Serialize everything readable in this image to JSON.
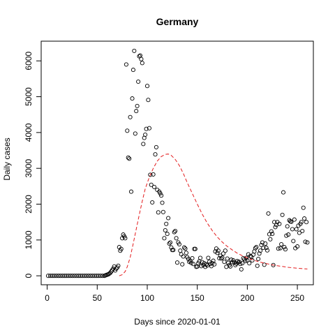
{
  "chart_data": {
    "type": "scatter",
    "title": "Germany",
    "xlabel": "Days since 2020-01-01",
    "ylabel": "Daily cases",
    "xlim": [
      -6,
      266
    ],
    "ylim": [
      -250,
      6550
    ],
    "x_ticks": [
      0,
      50,
      100,
      150,
      200,
      250
    ],
    "y_ticks": [
      0,
      1000,
      2000,
      3000,
      4000,
      5000,
      6000
    ],
    "grid": false,
    "legend": "none",
    "series": [
      {
        "mark": "open-circle",
        "color": "#000000",
        "points": [
          [
            1,
            0
          ],
          [
            3,
            0
          ],
          [
            5,
            0
          ],
          [
            7,
            0
          ],
          [
            9,
            0
          ],
          [
            11,
            0
          ],
          [
            13,
            0
          ],
          [
            15,
            0
          ],
          [
            17,
            0
          ],
          [
            19,
            0
          ],
          [
            21,
            0
          ],
          [
            23,
            0
          ],
          [
            25,
            0
          ],
          [
            27,
            0
          ],
          [
            29,
            0
          ],
          [
            31,
            0
          ],
          [
            33,
            0
          ],
          [
            35,
            0
          ],
          [
            37,
            0
          ],
          [
            39,
            0
          ],
          [
            41,
            0
          ],
          [
            43,
            0
          ],
          [
            45,
            0
          ],
          [
            47,
            0
          ],
          [
            49,
            0
          ],
          [
            51,
            0
          ],
          [
            53,
            0
          ],
          [
            55,
            0
          ],
          [
            57,
            0
          ],
          [
            58,
            10
          ],
          [
            59,
            20
          ],
          [
            60,
            30
          ],
          [
            61,
            40
          ],
          [
            62,
            60
          ],
          [
            63,
            80
          ],
          [
            64,
            120
          ],
          [
            65,
            160
          ],
          [
            66,
            200
          ],
          [
            67,
            260
          ],
          [
            68,
            150
          ],
          [
            69,
            200
          ],
          [
            70,
            230
          ],
          [
            71,
            280
          ],
          [
            72,
            800
          ],
          [
            73,
            700
          ],
          [
            74,
            750
          ],
          [
            75,
            1050
          ],
          [
            76,
            1150
          ],
          [
            77,
            1100
          ],
          [
            78,
            1050
          ],
          [
            79,
            5900
          ],
          [
            80,
            4050
          ],
          [
            81,
            3300
          ],
          [
            82,
            3270
          ],
          [
            83,
            4430
          ],
          [
            84,
            2350
          ],
          [
            85,
            4950
          ],
          [
            86,
            5750
          ],
          [
            87,
            6280
          ],
          [
            88,
            3970
          ],
          [
            89,
            4600
          ],
          [
            90,
            4740
          ],
          [
            91,
            5420
          ],
          [
            92,
            6130
          ],
          [
            93,
            6150
          ],
          [
            94,
            6050
          ],
          [
            95,
            5940
          ],
          [
            96,
            3680
          ],
          [
            97,
            3850
          ],
          [
            98,
            3940
          ],
          [
            99,
            4100
          ],
          [
            100,
            5300
          ],
          [
            101,
            4910
          ],
          [
            102,
            4120
          ],
          [
            103,
            2820
          ],
          [
            104,
            2540
          ],
          [
            105,
            2050
          ],
          [
            106,
            2830
          ],
          [
            107,
            2480
          ],
          [
            108,
            3390
          ],
          [
            109,
            3590
          ],
          [
            110,
            2400
          ],
          [
            111,
            1770
          ],
          [
            112,
            2350
          ],
          [
            113,
            2300
          ],
          [
            114,
            2240
          ],
          [
            115,
            2040
          ],
          [
            116,
            1780
          ],
          [
            117,
            1050
          ],
          [
            118,
            1270
          ],
          [
            119,
            1450
          ],
          [
            120,
            1170
          ],
          [
            121,
            1610
          ],
          [
            122,
            900
          ],
          [
            123,
            930
          ],
          [
            124,
            790
          ],
          [
            125,
            720
          ],
          [
            126,
            720
          ],
          [
            127,
            1220
          ],
          [
            128,
            1250
          ],
          [
            129,
            1050
          ],
          [
            130,
            370
          ],
          [
            131,
            930
          ],
          [
            132,
            880
          ],
          [
            133,
            700
          ],
          [
            134,
            600
          ],
          [
            135,
            320
          ],
          [
            136,
            540
          ],
          [
            137,
            790
          ],
          [
            138,
            760
          ],
          [
            139,
            640
          ],
          [
            140,
            520
          ],
          [
            141,
            470
          ],
          [
            142,
            390
          ],
          [
            143,
            420
          ],
          [
            144,
            360
          ],
          [
            145,
            490
          ],
          [
            146,
            330
          ],
          [
            147,
            750
          ],
          [
            148,
            750
          ],
          [
            149,
            250
          ],
          [
            150,
            260
          ],
          [
            151,
            350
          ],
          [
            152,
            400
          ],
          [
            153,
            500
          ],
          [
            154,
            270
          ],
          [
            155,
            380
          ],
          [
            156,
            300
          ],
          [
            157,
            350
          ],
          [
            158,
            250
          ],
          [
            159,
            320
          ],
          [
            160,
            290
          ],
          [
            161,
            500
          ],
          [
            162,
            390
          ],
          [
            163,
            330
          ],
          [
            164,
            270
          ],
          [
            165,
            350
          ],
          [
            166,
            420
          ],
          [
            167,
            320
          ],
          [
            168,
            680
          ],
          [
            169,
            760
          ],
          [
            170,
            640
          ],
          [
            171,
            700
          ],
          [
            172,
            490
          ],
          [
            173,
            560
          ],
          [
            174,
            480
          ],
          [
            175,
            510
          ],
          [
            176,
            620
          ],
          [
            177,
            390
          ],
          [
            178,
            700
          ],
          [
            179,
            250
          ],
          [
            180,
            480
          ],
          [
            181,
            360
          ],
          [
            182,
            300
          ],
          [
            183,
            260
          ],
          [
            184,
            450
          ],
          [
            185,
            380
          ],
          [
            186,
            430
          ],
          [
            187,
            370
          ],
          [
            188,
            300
          ],
          [
            189,
            340
          ],
          [
            190,
            410
          ],
          [
            191,
            380
          ],
          [
            192,
            390
          ],
          [
            193,
            330
          ],
          [
            194,
            180
          ],
          [
            195,
            350
          ],
          [
            196,
            490
          ],
          [
            197,
            460
          ],
          [
            198,
            410
          ],
          [
            199,
            500
          ],
          [
            200,
            430
          ],
          [
            201,
            600
          ],
          [
            202,
            350
          ],
          [
            203,
            550
          ],
          [
            204,
            530
          ],
          [
            205,
            430
          ],
          [
            206,
            590
          ],
          [
            207,
            680
          ],
          [
            208,
            770
          ],
          [
            209,
            800
          ],
          [
            210,
            280
          ],
          [
            211,
            470
          ],
          [
            212,
            620
          ],
          [
            213,
            700
          ],
          [
            214,
            860
          ],
          [
            215,
            930
          ],
          [
            216,
            780
          ],
          [
            217,
            310
          ],
          [
            218,
            900
          ],
          [
            219,
            780
          ],
          [
            220,
            710
          ],
          [
            221,
            1740
          ],
          [
            222,
            1160
          ],
          [
            223,
            1020
          ],
          [
            224,
            1240
          ],
          [
            225,
            1170
          ],
          [
            226,
            300
          ],
          [
            227,
            1500
          ],
          [
            228,
            1360
          ],
          [
            229,
            1420
          ],
          [
            230,
            1500
          ],
          [
            231,
            760
          ],
          [
            232,
            1450
          ],
          [
            233,
            770
          ],
          [
            234,
            880
          ],
          [
            235,
            1700
          ],
          [
            236,
            2330
          ],
          [
            237,
            800
          ],
          [
            238,
            740
          ],
          [
            239,
            1120
          ],
          [
            240,
            1380
          ],
          [
            241,
            1150
          ],
          [
            242,
            1550
          ],
          [
            243,
            1520
          ],
          [
            244,
            1510
          ],
          [
            245,
            1300
          ],
          [
            246,
            970
          ],
          [
            247,
            1570
          ],
          [
            248,
            770
          ],
          [
            249,
            1300
          ],
          [
            250,
            820
          ],
          [
            251,
            1400
          ],
          [
            252,
            1200
          ],
          [
            253,
            1450
          ],
          [
            254,
            1500
          ],
          [
            255,
            1250
          ],
          [
            256,
            1900
          ],
          [
            257,
            1600
          ],
          [
            258,
            950
          ],
          [
            259,
            1500
          ],
          [
            260,
            930
          ]
        ]
      },
      {
        "mark": "dashed-line",
        "color": "#e31a1c",
        "points": [
          [
            72,
            0
          ],
          [
            75,
            30
          ],
          [
            78,
            120
          ],
          [
            80,
            250
          ],
          [
            83,
            520
          ],
          [
            86,
            900
          ],
          [
            89,
            1300
          ],
          [
            92,
            1700
          ],
          [
            95,
            2080
          ],
          [
            98,
            2430
          ],
          [
            102,
            2750
          ],
          [
            106,
            3000
          ],
          [
            110,
            3200
          ],
          [
            114,
            3330
          ],
          [
            118,
            3390
          ],
          [
            121,
            3400
          ],
          [
            124,
            3360
          ],
          [
            128,
            3250
          ],
          [
            132,
            3080
          ],
          [
            136,
            2860
          ],
          [
            140,
            2600
          ],
          [
            145,
            2300
          ],
          [
            150,
            2000
          ],
          [
            155,
            1720
          ],
          [
            160,
            1470
          ],
          [
            165,
            1260
          ],
          [
            170,
            1080
          ],
          [
            175,
            940
          ],
          [
            180,
            820
          ],
          [
            185,
            720
          ],
          [
            190,
            630
          ],
          [
            195,
            560
          ],
          [
            200,
            500
          ],
          [
            205,
            450
          ],
          [
            210,
            405
          ],
          [
            215,
            365
          ],
          [
            220,
            335
          ],
          [
            225,
            305
          ],
          [
            230,
            280
          ],
          [
            235,
            260
          ],
          [
            240,
            240
          ],
          [
            245,
            225
          ],
          [
            250,
            210
          ],
          [
            255,
            200
          ],
          [
            260,
            190
          ]
        ]
      }
    ]
  }
}
